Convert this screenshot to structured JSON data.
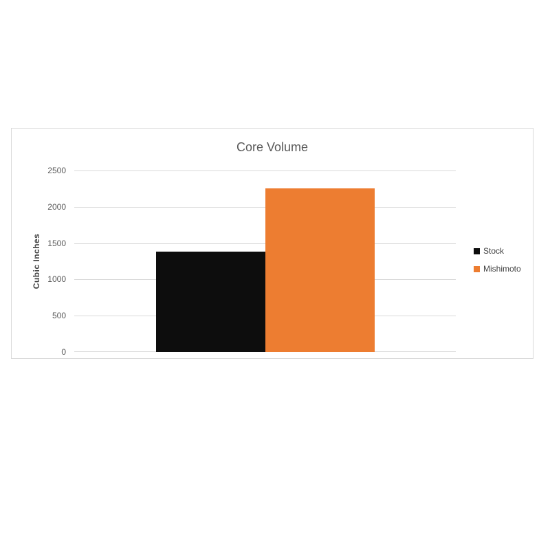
{
  "chart_data": {
    "type": "bar",
    "title": "Core Volume",
    "xlabel": "",
    "ylabel": "Cubic Inches",
    "categories": [
      ""
    ],
    "series": [
      {
        "name": "Stock",
        "values": [
          1380
        ],
        "color": "#0d0d0d"
      },
      {
        "name": "Mishimoto",
        "values": [
          2250
        ],
        "color": "#ED7D31"
      }
    ],
    "ylim": [
      0,
      2500
    ],
    "yticks": [
      0,
      500,
      1000,
      1500,
      2000,
      2500
    ],
    "grid": true,
    "legend_position": "right",
    "colors": {
      "grid": "#d9d9d9",
      "border": "#d9d9d9",
      "title_text": "#595959",
      "tick_text": "#595959",
      "label_text": "#404040",
      "background": "#ffffff"
    }
  }
}
